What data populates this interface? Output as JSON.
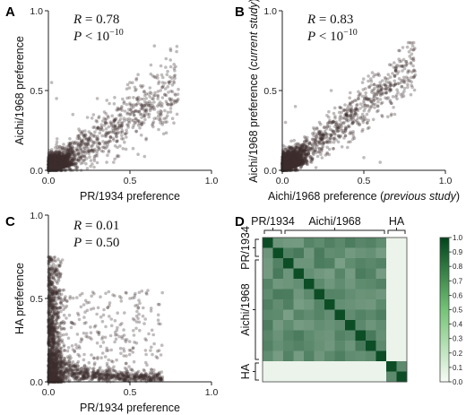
{
  "panels": [
    {
      "label": "A",
      "stats": [
        {
          "var": "R",
          "op": " = ",
          "val": "0.78",
          "sup": ""
        },
        {
          "var": "P",
          "op": " < ",
          "val": "10",
          "sup": "−10"
        }
      ],
      "xlabel_parts": [
        {
          "t": "PR/1934 preference",
          "i": false
        }
      ],
      "ylabel_parts": [
        {
          "t": "Aichi/1968 preference",
          "i": false
        }
      ],
      "xticks": [
        "0.0",
        "0.5",
        "1.0"
      ],
      "yticks": [
        "0.0",
        "0.5",
        "1.0"
      ]
    },
    {
      "label": "B",
      "stats": [
        {
          "var": "R",
          "op": " = ",
          "val": "0.83",
          "sup": ""
        },
        {
          "var": "P",
          "op": " < ",
          "val": "10",
          "sup": "−10"
        }
      ],
      "xlabel_parts": [
        {
          "t": "Aichi/1968 preference (",
          "i": false
        },
        {
          "t": "previous study",
          "i": true
        },
        {
          "t": ")",
          "i": false
        }
      ],
      "ylabel_parts": [
        {
          "t": "Aichi/1968 preference (",
          "i": false
        },
        {
          "t": "current study",
          "i": true
        },
        {
          "t": ")",
          "i": false
        }
      ],
      "xticks": [
        "0.0",
        "0.5",
        "1.0"
      ],
      "yticks": [
        "0.0",
        "0.5",
        "1.0"
      ]
    },
    {
      "label": "C",
      "stats": [
        {
          "var": "R",
          "op": " = ",
          "val": "0.01",
          "sup": ""
        },
        {
          "var": "P",
          "op": " = ",
          "val": "0.50",
          "sup": ""
        }
      ],
      "xlabel_parts": [
        {
          "t": "PR/1934 preference",
          "i": false
        }
      ],
      "ylabel_parts": [
        {
          "t": "HA preference",
          "i": false
        }
      ],
      "xticks": [
        "0.0",
        "0.5",
        "1.0"
      ],
      "yticks": [
        "0.0",
        "0.5",
        "1.0"
      ]
    },
    {
      "label": "D",
      "top_groups": [
        "PR/1934",
        "Aichi/1968",
        "HA"
      ],
      "left_groups": [
        "PR/1934",
        "Aichi/1968",
        "HA"
      ],
      "colorbar_ticks": [
        "1.0",
        "0.9",
        "0.8",
        "0.7",
        "0.6",
        "0.5",
        "0.4",
        "0.3",
        "0.2",
        "0.1",
        "0.0"
      ]
    }
  ],
  "chart_data": [
    {
      "type": "scatter",
      "panel": "A",
      "xlabel": "PR/1934 preference",
      "ylabel": "Aichi/1968 preference",
      "xlim": [
        0,
        1
      ],
      "ylim": [
        0,
        1
      ],
      "n_points": 2400,
      "points": [
        [
          0.05,
          0.02
        ],
        [
          0.1,
          0.05
        ],
        [
          0.2,
          0.08
        ],
        [
          0.3,
          0.15
        ],
        [
          0.4,
          0.25
        ],
        [
          0.5,
          0.35
        ],
        [
          0.6,
          0.45
        ],
        [
          0.7,
          0.55
        ],
        [
          0.75,
          0.75
        ],
        [
          0.78,
          0.65
        ],
        [
          0.65,
          0.78
        ],
        [
          0.55,
          0.6
        ],
        [
          0.45,
          0.4
        ],
        [
          0.35,
          0.3
        ],
        [
          0.25,
          0.2
        ],
        [
          0.15,
          0.35
        ],
        [
          0.05,
          0.45
        ],
        [
          0.02,
          0.55
        ],
        [
          0.4,
          0.05
        ],
        [
          0.55,
          0.1
        ],
        [
          0.6,
          0.2
        ],
        [
          0.7,
          0.3
        ],
        [
          0.3,
          0.45
        ],
        [
          0.5,
          0.55
        ]
      ],
      "stats": {
        "R": 0.78,
        "P": "< 10^-10"
      },
      "color": "#3d2e30"
    },
    {
      "type": "scatter",
      "panel": "B",
      "xlabel": "Aichi/1968 preference (previous study)",
      "ylabel": "Aichi/1968 preference (current study)",
      "xlim": [
        0,
        1
      ],
      "ylim": [
        0,
        1
      ],
      "n_points": 2400,
      "points": [
        [
          0.05,
          0.03
        ],
        [
          0.1,
          0.07
        ],
        [
          0.2,
          0.12
        ],
        [
          0.3,
          0.22
        ],
        [
          0.4,
          0.33
        ],
        [
          0.5,
          0.42
        ],
        [
          0.6,
          0.55
        ],
        [
          0.7,
          0.65
        ],
        [
          0.8,
          0.78
        ],
        [
          0.72,
          0.75
        ],
        [
          0.65,
          0.6
        ],
        [
          0.55,
          0.5
        ],
        [
          0.45,
          0.38
        ],
        [
          0.35,
          0.28
        ],
        [
          0.25,
          0.15
        ],
        [
          0.15,
          0.1
        ],
        [
          0.6,
          0.05
        ],
        [
          0.5,
          0.08
        ],
        [
          0.02,
          0.3
        ],
        [
          0.08,
          0.4
        ],
        [
          0.3,
          0.5
        ]
      ],
      "stats": {
        "R": 0.83,
        "P": "< 10^-10"
      },
      "color": "#3d2e30"
    },
    {
      "type": "scatter",
      "panel": "C",
      "xlabel": "PR/1934 preference",
      "ylabel": "HA preference",
      "xlim": [
        0,
        1
      ],
      "ylim": [
        0,
        1
      ],
      "n_points": 2200,
      "points": [
        [
          0.0,
          0.75
        ],
        [
          0.01,
          0.65
        ],
        [
          0.02,
          0.5
        ],
        [
          0.03,
          0.4
        ],
        [
          0.05,
          0.3
        ],
        [
          0.08,
          0.2
        ],
        [
          0.12,
          0.12
        ],
        [
          0.2,
          0.08
        ],
        [
          0.3,
          0.05
        ],
        [
          0.4,
          0.03
        ],
        [
          0.5,
          0.02
        ],
        [
          0.6,
          0.02
        ],
        [
          0.7,
          0.01
        ],
        [
          0.3,
          0.3
        ],
        [
          0.45,
          0.35
        ],
        [
          0.55,
          0.38
        ],
        [
          0.6,
          0.25
        ],
        [
          0.5,
          0.5
        ],
        [
          0.2,
          0.45
        ],
        [
          0.35,
          0.15
        ],
        [
          0.1,
          0.5
        ],
        [
          0.15,
          0.35
        ]
      ],
      "stats": {
        "R": 0.01,
        "P": 0.5
      },
      "color": "#3d2e30"
    },
    {
      "type": "heatmap",
      "panel": "D",
      "groups": [
        {
          "name": "PR/1934",
          "size": 2
        },
        {
          "name": "Aichi/1968",
          "size": 10
        },
        {
          "name": "HA",
          "size": 2
        }
      ],
      "value_range": [
        0,
        1
      ],
      "within_subtype": "0.55–0.8",
      "between_subtype_vs_HA": "≈0.05",
      "diagonal": 1.0,
      "colormap": [
        "#f7fcf5",
        "#00441b"
      ]
    }
  ],
  "colors": {
    "point": "#3d2e30",
    "axis": "#222222"
  }
}
